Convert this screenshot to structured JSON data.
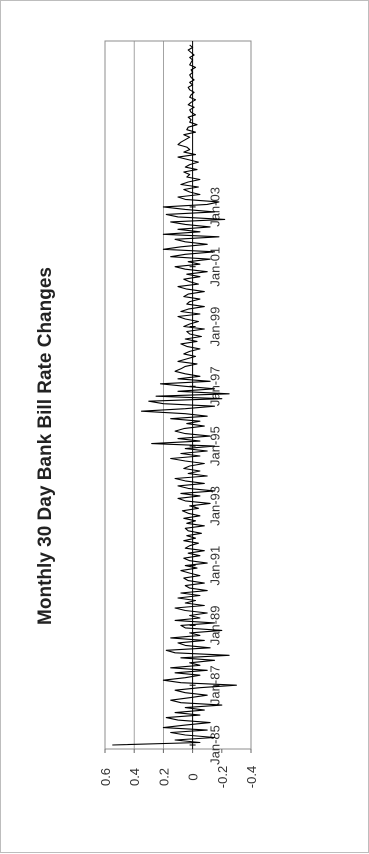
{
  "chart_data": {
    "type": "line",
    "title": "Monthly 30 Day Bank Bill Rate Changes",
    "xlabel": "",
    "ylabel": "",
    "ylim": [
      -0.4,
      0.6
    ],
    "y_ticks": [
      "0.6",
      "0.4",
      "0.2",
      "0",
      "-0.2",
      "-0.4"
    ],
    "y_tick_values": [
      0.6,
      0.4,
      0.2,
      0,
      -0.2,
      -0.4
    ],
    "x_tick_labels": [
      "Jan-85",
      "Jan-87",
      "Jan-89",
      "Jan-91",
      "Jan-93",
      "Jan-95",
      "Jan-97",
      "Jan-99",
      "Jan-01",
      "Jan-03"
    ],
    "x_start": "Jan-85",
    "x_end": "Apr-04",
    "grid": "horizontal gridlines at 0.2, 0.4",
    "orientation": "rotated 90 degrees counter-clockwise",
    "series_color": "#000000",
    "values": [
      0.55,
      -0.05,
      0.12,
      -0.15,
      0.05,
      0.15,
      -0.1,
      0.2,
      0.05,
      -0.12,
      0.1,
      0.18,
      -0.05,
      0.12,
      -0.08,
      0.05,
      -0.2,
      0.08,
      0.15,
      0.02,
      -0.1,
      0.05,
      0.12,
      -0.05,
      -0.3,
      0.08,
      0.2,
      0.05,
      -0.05,
      0.12,
      -0.1,
      0.15,
      -0.05,
      0.02,
      -0.15,
      0.08,
      -0.25,
      0.12,
      0.18,
      -0.12,
      0.05,
      0.1,
      -0.08,
      0.15,
      -0.05,
      0.02,
      -0.2,
      0.05,
      0.08,
      -0.15,
      0.12,
      -0.05,
      0.02,
      -0.1,
      0.05,
      0.12,
      -0.08,
      0.05,
      -0.02,
      0.1,
      -0.05,
      0.08,
      -0.1,
      0.02,
      0.05,
      -0.08,
      0.03,
      0.06,
      -0.05,
      0.02,
      0.08,
      -0.03,
      0.05,
      -0.1,
      0.02,
      0.06,
      -0.05,
      0.03,
      -0.08,
      0.05,
      0.02,
      -0.04,
      0.06,
      -0.02,
      0.04,
      -0.06,
      0.03,
      0.05,
      -0.08,
      0.04,
      -0.02,
      0.06,
      -0.05,
      0.03,
      0.07,
      -0.04,
      0.02,
      -0.12,
      0.05,
      0.1,
      -0.05,
      0.08,
      -0.15,
      0.03,
      0.1,
      -0.08,
      0.05,
      0.12,
      -0.1,
      0.03,
      -0.05,
      0.06,
      0.02,
      -0.08,
      0.05,
      0.15,
      -0.05,
      0.08,
      -0.1,
      0.05,
      -0.15,
      0.28,
      -0.05,
      0.1,
      -0.12,
      0.05,
      0.12,
      0.06,
      -0.08,
      0.04,
      -0.05,
      0.15,
      -0.1,
      0.05,
      0.35,
      0.05,
      -0.15,
      0.2,
      0.3,
      -0.2,
      0.25,
      -0.25,
      0.1,
      -0.15,
      0.05,
      0.22,
      -0.12,
      0.1,
      -0.05,
      0.05,
      0.12,
      0.08,
      0.05,
      -0.03,
      0.1,
      0.04,
      -0.02,
      0.06,
      0.02,
      -0.05,
      0.04,
      0.08,
      -0.03,
      0.05,
      -0.06,
      0.02,
      0.04,
      -0.08,
      0.06,
      0.02,
      -0.04,
      0.05,
      0.1,
      -0.05,
      0.08,
      0.03,
      -0.08,
      0.04,
      0.02,
      -0.05,
      0.06,
      0.03,
      -0.08,
      0.04,
      0.1,
      -0.04,
      0.02,
      0.06,
      -0.05,
      0.04,
      -0.1,
      0.05,
      0.12,
      -0.05,
      0.03,
      -0.12,
      0.15,
      0.05,
      -0.15,
      0.2,
      0.08,
      -0.1,
      0.05,
      0.12,
      -0.18,
      0.2,
      -0.05,
      0.1,
      -0.12,
      0.05,
      0.15,
      -0.22,
      0.1,
      0.18,
      -0.15,
      0.05,
      0.2,
      -0.1,
      -0.18,
      0.05,
      0.1,
      -0.05,
      0.02,
      0.06,
      -0.04,
      0.08,
      0.03,
      -0.05,
      0.04,
      0.02,
      0.06,
      -0.03,
      0.05,
      0.02,
      -0.04,
      0.03,
      0.1,
      -0.02,
      0.06,
      0.02,
      0.04,
      0.1,
      0.08,
      0.05,
      0.02,
      0.06,
      -0.02,
      0.04,
      0.03,
      -0.03,
      0.02,
      0.01,
      0.03,
      -0.02,
      0.01,
      0.02,
      -0.01,
      0.03,
      0.01,
      -0.02,
      0.02,
      0.01,
      -0.01,
      0.02,
      0.03,
      0,
      0.02,
      -0.01,
      0.01,
      0.02,
      0,
      0.01,
      -0.02,
      0.02,
      0.01,
      0,
      0.02,
      -0.01,
      0.01,
      0.03,
      0,
      0.02
    ]
  }
}
